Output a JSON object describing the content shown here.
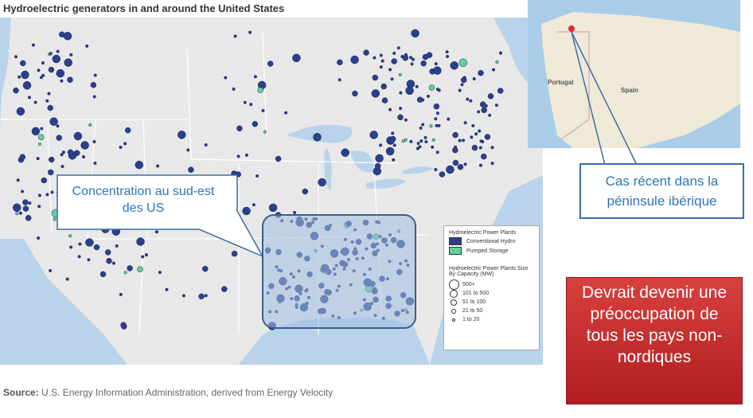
{
  "title": "Hydroelectric generators in and around the United States",
  "legend": {
    "title": "Hydroelectric Power Plants",
    "items": [
      "Conventional Hydro",
      "Pumped Storage"
    ],
    "size_title": "Hydroelectric Power Plants Size By Capacity (MW)",
    "sizes": [
      "500+",
      "101 to 500",
      "51 to 100",
      "21 to 50",
      "1 to 20"
    ]
  },
  "source": {
    "label": "Source:",
    "text": "U.S. Energy Information Administration, derived from Energy Velocity"
  },
  "inset": {
    "labels": [
      "Portugal",
      "Spain"
    ]
  },
  "callouts": {
    "southeast": "Concentration au sud-est des US",
    "iberia": "Cas récent dans la péninsule ibérique",
    "warning": "Devrait devenir une préoccupation de tous les pays non-nordiques"
  }
}
